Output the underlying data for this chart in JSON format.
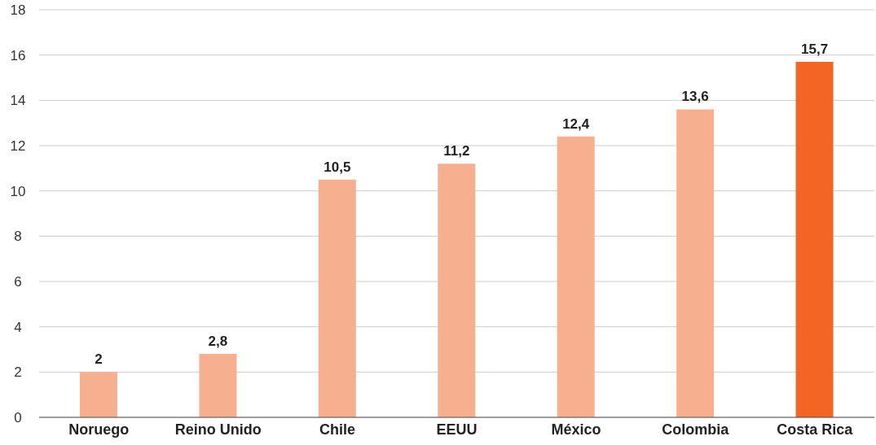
{
  "chart_data": {
    "type": "bar",
    "categories": [
      "Noruego",
      "Reino Unido",
      "Chile",
      "EEUU",
      "México",
      "Colombia",
      "Costa Rica"
    ],
    "values": [
      2,
      2.8,
      10.5,
      11.2,
      12.4,
      13.6,
      15.7
    ],
    "value_labels": [
      "2",
      "2,8",
      "10,5",
      "11,2",
      "12,4",
      "13,6",
      "15,7"
    ],
    "colors": [
      "#f7b08f",
      "#f7b08f",
      "#f7b08f",
      "#f7b08f",
      "#f7b08f",
      "#f7b08f",
      "#f26522"
    ],
    "ylim": [
      0,
      18
    ],
    "yticks": [
      0,
      2,
      4,
      6,
      8,
      10,
      12,
      14,
      16,
      18
    ],
    "grid": "y"
  }
}
